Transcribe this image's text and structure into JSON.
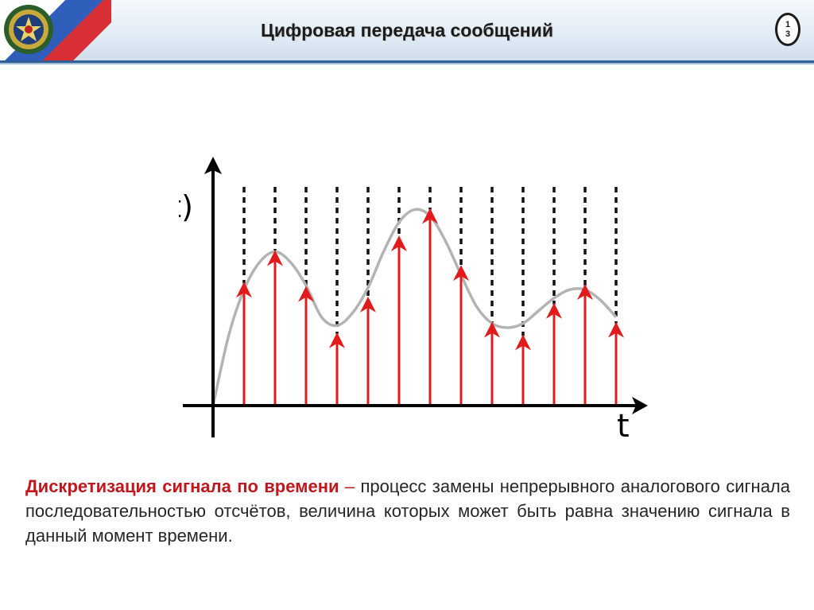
{
  "header": {
    "title": "Цифровая передача сообщений",
    "page_number": [
      "1",
      "3"
    ],
    "emblem_icon": "military-emblem-icon",
    "flag_colors": [
      "#ffffff",
      "#2557b7",
      "#d8262c"
    ]
  },
  "chart_data": {
    "type": "line",
    "ylabel": "f(t)",
    "xlabel": "t",
    "samples": [
      {
        "t": 1,
        "v": 0.58
      },
      {
        "t": 2,
        "v": 0.73
      },
      {
        "t": 3,
        "v": 0.56
      },
      {
        "t": 4,
        "v": 0.34
      },
      {
        "t": 5,
        "v": 0.51
      },
      {
        "t": 6,
        "v": 0.8
      },
      {
        "t": 7,
        "v": 0.93
      },
      {
        "t": 8,
        "v": 0.66
      },
      {
        "t": 9,
        "v": 0.39
      },
      {
        "t": 10,
        "v": 0.33
      },
      {
        "t": 11,
        "v": 0.48
      },
      {
        "t": 12,
        "v": 0.57
      },
      {
        "t": 13,
        "v": 0.39
      }
    ],
    "curve": [
      [
        0,
        0.0
      ],
      [
        0.5,
        0.33
      ],
      [
        1,
        0.55
      ],
      [
        1.5,
        0.68
      ],
      [
        2,
        0.73
      ],
      [
        2.5,
        0.68
      ],
      [
        3,
        0.57
      ],
      [
        3.5,
        0.42
      ],
      [
        4,
        0.38
      ],
      [
        4.5,
        0.44
      ],
      [
        5,
        0.56
      ],
      [
        5.5,
        0.73
      ],
      [
        6,
        0.87
      ],
      [
        6.5,
        0.93
      ],
      [
        7,
        0.9
      ],
      [
        7.5,
        0.78
      ],
      [
        8,
        0.62
      ],
      [
        8.5,
        0.47
      ],
      [
        9,
        0.39
      ],
      [
        9.5,
        0.37
      ],
      [
        10,
        0.39
      ],
      [
        10.5,
        0.45
      ],
      [
        11,
        0.51
      ],
      [
        11.5,
        0.55
      ],
      [
        12,
        0.55
      ],
      [
        12.5,
        0.5
      ],
      [
        13,
        0.42
      ]
    ],
    "colors": {
      "samples": "#e11b1b",
      "curve": "#b3b3b3",
      "grid": "#111111",
      "axis": "#000000"
    }
  },
  "description": {
    "term": "Дискретизация сигнала по времени",
    "dash": "–",
    "text": "процесс замены непрерывного аналогового сигнала последовательностью отсчётов, величина которых может быть равна значению сигнала в данный момент времени."
  }
}
